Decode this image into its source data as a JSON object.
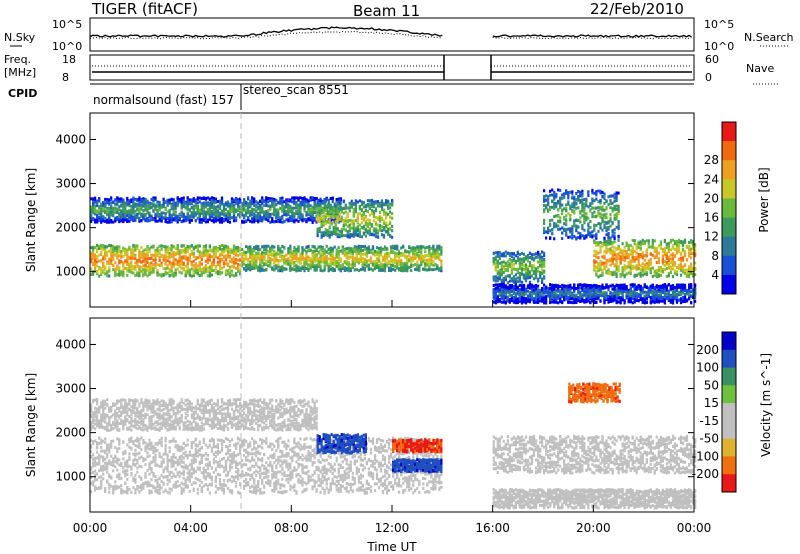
{
  "header": {
    "radar": "TIGER (fitACF)",
    "beam": "Beam 11",
    "date": "22/Feb/2010"
  },
  "noise_panel": {
    "left_label": "N.Sky",
    "right_label": "N.Search",
    "y_ticks": [
      "10^5",
      "10^0"
    ]
  },
  "freq_panel": {
    "left_label_1": "Freq.",
    "left_label_2": "[MHz]",
    "right_label": "Nave",
    "left_ticks": [
      "18",
      "8"
    ],
    "right_ticks": [
      "60",
      "0"
    ]
  },
  "cpid_panel": {
    "label": "CPID",
    "modes": [
      {
        "name": "normalsound (fast) 157",
        "start_hour": 0
      },
      {
        "name": "stereo_scan 8551",
        "start_hour": 6
      }
    ]
  },
  "colors": {
    "power_scale": [
      "#0000e6",
      "#1a4fd8",
      "#2b7a9a",
      "#3c9a5a",
      "#6ab83c",
      "#c8c828",
      "#f0a020",
      "#f06a10",
      "#e81818"
    ],
    "velocity_scale": [
      "#0000c8",
      "#2050c0",
      "#3a9060",
      "#70c040",
      "#c0c0c0",
      "#c0c0c0",
      "#e0b030",
      "#f07010",
      "#e81818"
    ],
    "ground_scatter": "#c0c0c0"
  },
  "chart_data": [
    {
      "type": "heatmap",
      "title": "Power",
      "xlabel": "",
      "ylabel": "Slant Range [km]",
      "x_range_hours": [
        0,
        24
      ],
      "ylim": [
        200,
        4600
      ],
      "y_ticks": [
        "1000",
        "2000",
        "3000",
        "4000"
      ],
      "colorbar_label": "Power [dB]",
      "colorbar_ticks": [
        "4",
        "8",
        "12",
        "16",
        "20",
        "24",
        "28"
      ],
      "colorbar_range": [
        0,
        32
      ],
      "data_gap_hours": [
        14,
        16
      ],
      "bands": [
        {
          "t0": 0,
          "t1": 6,
          "r_center": 1250,
          "r_width": 500,
          "level": 26
        },
        {
          "t0": 6,
          "t1": 14,
          "r_center": 1300,
          "r_width": 400,
          "level": 22
        },
        {
          "t0": 0,
          "t1": 10,
          "r_center": 2400,
          "r_width": 400,
          "level": 14
        },
        {
          "t0": 9,
          "t1": 12,
          "r_center": 2200,
          "r_width": 600,
          "level": 20
        },
        {
          "t0": 16,
          "t1": 18,
          "r_center": 1100,
          "r_width": 500,
          "level": 18
        },
        {
          "t0": 18,
          "t1": 21,
          "r_center": 2300,
          "r_width": 800,
          "level": 16
        },
        {
          "t0": 20,
          "t1": 24,
          "r_center": 1300,
          "r_width": 600,
          "level": 26
        },
        {
          "t0": 16,
          "t1": 24,
          "r_center": 500,
          "r_width": 300,
          "level": 10
        }
      ]
    },
    {
      "type": "heatmap",
      "title": "Velocity",
      "xlabel": "Time UT",
      "ylabel": "Slant Range [km]",
      "x_range_hours": [
        0,
        24
      ],
      "x_ticks": [
        "00:00",
        "04:00",
        "08:00",
        "12:00",
        "16:00",
        "20:00",
        "00:00"
      ],
      "ylim": [
        200,
        4600
      ],
      "y_ticks": [
        "1000",
        "2000",
        "3000",
        "4000"
      ],
      "colorbar_label": "Velocity [m s^-1]",
      "colorbar_ticks": [
        "200",
        "100",
        "50",
        "15",
        "-15",
        "-50",
        "-100",
        "-200"
      ],
      "colorbar_range": [
        -250,
        250
      ],
      "data_gap_hours": [
        14,
        16
      ],
      "bands": [
        {
          "t0": 0,
          "t1": 14,
          "r_center": 1250,
          "r_width": 900,
          "velocity": 0
        },
        {
          "t0": 0,
          "t1": 9,
          "r_center": 2400,
          "r_width": 500,
          "velocity": 0
        },
        {
          "t0": 9,
          "t1": 11,
          "r_center": 1750,
          "r_width": 300,
          "velocity": 180
        },
        {
          "t0": 12,
          "t1": 14,
          "r_center": 1250,
          "r_width": 200,
          "velocity": 180
        },
        {
          "t0": 12,
          "t1": 14,
          "r_center": 1700,
          "r_width": 200,
          "velocity": -200
        },
        {
          "t0": 16,
          "t1": 24,
          "r_center": 1500,
          "r_width": 600,
          "velocity": 0
        },
        {
          "t0": 16,
          "t1": 24,
          "r_center": 500,
          "r_width": 300,
          "velocity": -40
        },
        {
          "t0": 19,
          "t1": 21,
          "r_center": 2900,
          "r_width": 300,
          "velocity": -180
        }
      ]
    }
  ]
}
